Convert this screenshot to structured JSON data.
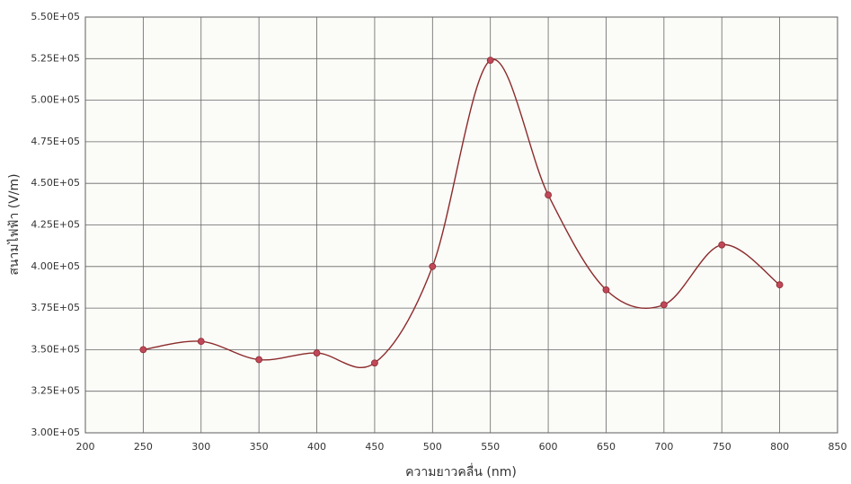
{
  "chart_data": {
    "type": "line",
    "x_label": "ความยาวคลื่น (nm)",
    "y_label": "สนามไฟฟ้า (V/m)",
    "x": [
      250,
      300,
      350,
      400,
      450,
      500,
      550,
      600,
      650,
      700,
      750,
      800
    ],
    "series": [
      {
        "color": "#8b2b2b",
        "marker_color": "#c0485a",
        "values": [
          350000,
          355000,
          344000,
          348000,
          342000,
          400000,
          524000,
          443000,
          386000,
          377000,
          413000,
          389000
        ]
      }
    ],
    "xlim": [
      200,
      850
    ],
    "xticks": [
      200,
      250,
      300,
      350,
      400,
      450,
      500,
      550,
      600,
      650,
      700,
      750,
      800,
      850
    ],
    "ylim": [
      300000,
      550000
    ],
    "yticks": [
      {
        "value": 300000,
        "label": "3.00E+05"
      },
      {
        "value": 325000,
        "label": "3.25E+05"
      },
      {
        "value": 350000,
        "label": "3.50E+05"
      },
      {
        "value": 375000,
        "label": "3.75E+05"
      },
      {
        "value": 400000,
        "label": "4.00E+05"
      },
      {
        "value": 425000,
        "label": "4.25E+05"
      },
      {
        "value": 450000,
        "label": "4.50E+05"
      },
      {
        "value": 475000,
        "label": "4.75E+05"
      },
      {
        "value": 500000,
        "label": "5.00E+05"
      },
      {
        "value": 525000,
        "label": "5.25E+05"
      },
      {
        "value": 550000,
        "label": "5.50E+05"
      }
    ],
    "grid": true,
    "smooth": true
  }
}
